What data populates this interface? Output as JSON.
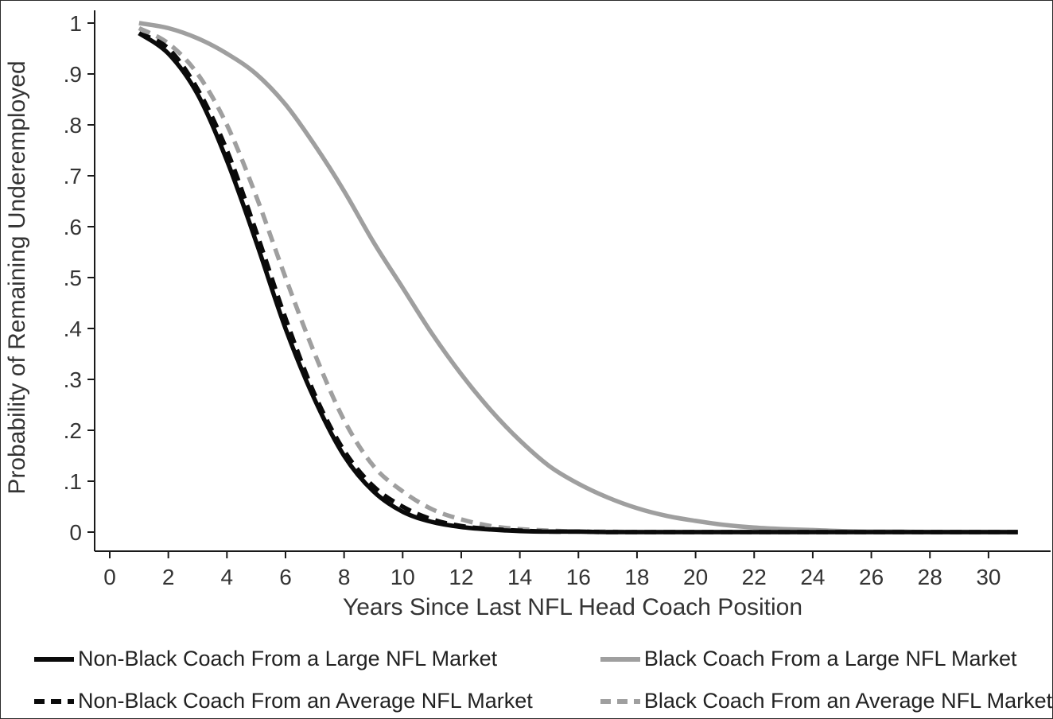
{
  "figure": {
    "border_color": "#2b2b2b",
    "background_color": "#ffffff"
  },
  "chart_data": {
    "type": "line",
    "title": "",
    "xlabel": "Years Since Last NFL Head Coach Position",
    "ylabel": "Probability of Remaining Underemployed",
    "xlim": [
      0,
      31.5
    ],
    "ylim": [
      0,
      1
    ],
    "grid": false,
    "legend_position": "bottom",
    "x_ticks": [
      0,
      2,
      4,
      6,
      8,
      10,
      12,
      14,
      16,
      18,
      20,
      22,
      24,
      26,
      28,
      30
    ],
    "y_ticks": [
      {
        "value": 0,
        "label": "0"
      },
      {
        "value": 0.1,
        "label": ".1"
      },
      {
        "value": 0.2,
        "label": ".2"
      },
      {
        "value": 0.3,
        "label": ".3"
      },
      {
        "value": 0.4,
        "label": ".4"
      },
      {
        "value": 0.5,
        "label": ".5"
      },
      {
        "value": 0.6,
        "label": ".6"
      },
      {
        "value": 0.7,
        "label": ".7"
      },
      {
        "value": 0.8,
        "label": ".8"
      },
      {
        "value": 0.9,
        "label": ".9"
      },
      {
        "value": 1,
        "label": "1"
      }
    ],
    "x": [
      1,
      2,
      3,
      4,
      5,
      6,
      7,
      8,
      9,
      10,
      11,
      12,
      13,
      14,
      15,
      16,
      17,
      18,
      19,
      20,
      21,
      22,
      23,
      24,
      25,
      26,
      27,
      28,
      29,
      30,
      31
    ],
    "series": [
      {
        "name": "Non-Black Coach From a Large NFL Market",
        "color": "#0a0a0a",
        "dash": "solid",
        "values": [
          0.98,
          0.94,
          0.86,
          0.73,
          0.57,
          0.4,
          0.26,
          0.15,
          0.08,
          0.04,
          0.02,
          0.01,
          0.005,
          0.002,
          0.001,
          0.001,
          0,
          0,
          0,
          0,
          0,
          0,
          0,
          0,
          0,
          0,
          0,
          0,
          0,
          0,
          0
        ]
      },
      {
        "name": "Black Coach From a Large NFL Market",
        "color": "#9f9f9f",
        "dash": "solid",
        "values": [
          1.0,
          0.99,
          0.97,
          0.94,
          0.9,
          0.84,
          0.76,
          0.67,
          0.57,
          0.48,
          0.39,
          0.31,
          0.24,
          0.18,
          0.13,
          0.095,
          0.068,
          0.047,
          0.032,
          0.022,
          0.014,
          0.009,
          0.006,
          0.004,
          0.002,
          0.001,
          0.001,
          0,
          0,
          0,
          0
        ]
      },
      {
        "name": "Non-Black Coach From an Average NFL Market",
        "color": "#0a0a0a",
        "dash": "dashed",
        "values": [
          0.98,
          0.95,
          0.87,
          0.75,
          0.59,
          0.42,
          0.27,
          0.16,
          0.09,
          0.05,
          0.025,
          0.012,
          0.006,
          0.003,
          0.001,
          0.001,
          0,
          0,
          0,
          0,
          0,
          0,
          0,
          0,
          0,
          0,
          0,
          0,
          0,
          0,
          0
        ]
      },
      {
        "name": "Black Coach From an Average NFL Market",
        "color": "#9f9f9f",
        "dash": "dashed",
        "values": [
          0.99,
          0.96,
          0.9,
          0.8,
          0.66,
          0.5,
          0.35,
          0.22,
          0.13,
          0.08,
          0.045,
          0.025,
          0.012,
          0.006,
          0.003,
          0.001,
          0.001,
          0,
          0,
          0,
          0,
          0,
          0,
          0,
          0,
          0,
          0,
          0,
          0,
          0,
          0
        ]
      }
    ]
  }
}
